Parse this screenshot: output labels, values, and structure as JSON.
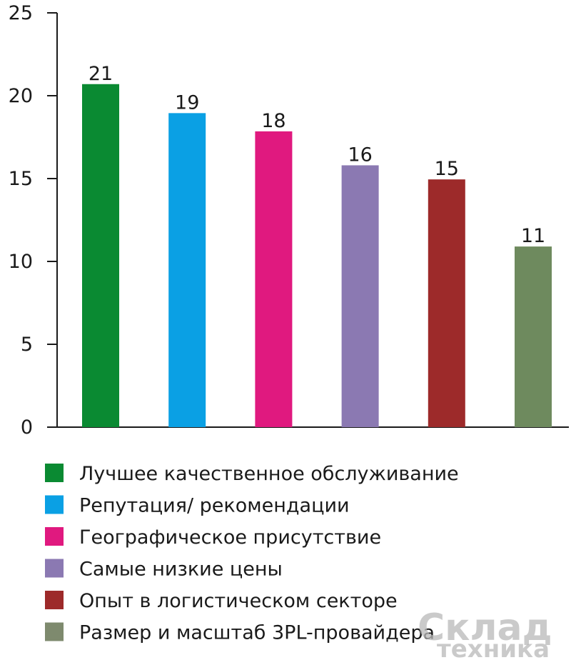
{
  "chart_data": {
    "type": "bar",
    "categories": [
      "Лучшее качественное обслуживание",
      "Репутация/ рекомендации",
      "Географическое присутствие",
      "Самые низкие цены",
      "Опыт в логистическом секторе",
      "Размер и масштаб 3PL-провайдера"
    ],
    "values": [
      21,
      19,
      18,
      16,
      15,
      11
    ],
    "plotted_values": [
      20.7,
      18.95,
      17.85,
      15.8,
      14.95,
      10.9
    ],
    "colors": [
      "#0a8a32",
      "#0aa0e4",
      "#e0197f",
      "#8b79b2",
      "#9d2a2a",
      "#6e8a5e"
    ],
    "legend_colors": [
      "#0a8a32",
      "#0aa0e4",
      "#e0197f",
      "#8b79b2",
      "#9d2a2a",
      "#7e8a6e"
    ],
    "ylim": [
      0,
      25
    ],
    "yticks": [
      0,
      5,
      10,
      15,
      20,
      25
    ],
    "title": "",
    "xlabel": "",
    "ylabel": "",
    "grid": false,
    "legend_position": "bottom"
  },
  "watermark": {
    "line1": "Склад",
    "line2": "техника"
  }
}
